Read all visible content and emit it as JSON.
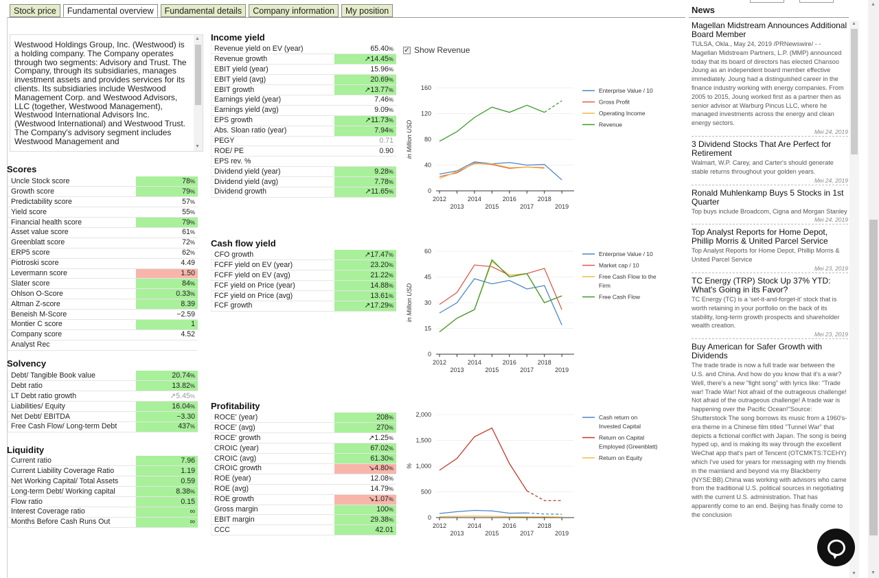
{
  "tabs": [
    {
      "label": "Stock price",
      "active": false
    },
    {
      "label": "Fundamental overview",
      "active": true
    },
    {
      "label": "Fundamental details",
      "active": false
    },
    {
      "label": "Company information",
      "active": false
    },
    {
      "label": "My position",
      "active": false
    }
  ],
  "description": "Westwood Holdings Group, Inc. (Westwood) is a holding company. The Company operates through two segments: Advisory and Trust. The Company, through its subsidiaries, manages investment assets and provides services for its clients. Its subsidiaries include Westwood Management Corp. and Westwood Advisors, LLC (together, Westwood Management), Westwood International Advisors Inc. (Westwood International) and Westwood Trust. The Company's advisory segment includes Westwood Management and",
  "scores": {
    "title": "Scores",
    "rows": [
      {
        "label": "Uncle Stock score",
        "value": "78",
        "unit": "%",
        "c": "g"
      },
      {
        "label": "Growth score",
        "value": "79",
        "unit": "%",
        "c": "g"
      },
      {
        "label": "Predictability score",
        "value": "57",
        "unit": "%",
        "c": "n"
      },
      {
        "label": "Yield score",
        "value": "55",
        "unit": "%",
        "c": "n"
      },
      {
        "label": "Financial health score",
        "value": "79",
        "unit": "%",
        "c": "g"
      },
      {
        "label": "Asset value score",
        "value": "61",
        "unit": "%",
        "c": "n"
      },
      {
        "label": "Greenblatt score",
        "value": "72",
        "unit": "%",
        "c": "n"
      },
      {
        "label": "ERP5 score",
        "value": "62",
        "unit": "%",
        "c": "n"
      },
      {
        "label": "Piotroski score",
        "value": "4.49",
        "unit": "",
        "c": "n"
      },
      {
        "label": "Levermann score",
        "value": "1.50",
        "unit": "",
        "c": "r"
      },
      {
        "label": "Slater score",
        "value": "84",
        "unit": "%",
        "c": "g"
      },
      {
        "label": "Ohlson O-Score",
        "value": "0.33",
        "unit": "%",
        "c": "g"
      },
      {
        "label": "Altman Z-score",
        "value": "8.39",
        "unit": "",
        "c": "g"
      },
      {
        "label": "Beneish M-Score",
        "value": "−2.59",
        "unit": "",
        "c": "n"
      },
      {
        "label": "Montier C score",
        "value": "1",
        "unit": "",
        "c": "g"
      },
      {
        "label": "Company score",
        "value": "4.52",
        "unit": "",
        "c": "n"
      },
      {
        "label": "Analyst Rec",
        "value": "",
        "unit": "",
        "c": "n"
      }
    ]
  },
  "solvency": {
    "title": "Solvency",
    "rows": [
      {
        "label": "Debt/ Tangible Book value",
        "value": "20.74",
        "unit": "%",
        "c": "g"
      },
      {
        "label": "Debt ratio",
        "value": "13.82",
        "unit": "%",
        "c": "g"
      },
      {
        "label": "LT Debt ratio growth",
        "value": "↗5.45",
        "unit": "%",
        "c": "n",
        "gray": true
      },
      {
        "label": "Liabilities/ Equity",
        "value": "16.04",
        "unit": "%",
        "c": "g"
      },
      {
        "label": "Net Debt/ EBITDA",
        "value": "−3.30",
        "unit": "",
        "c": "g"
      },
      {
        "label": "Free Cash Flow/ Long-term Debt",
        "value": "437",
        "unit": "%",
        "c": "g"
      }
    ]
  },
  "liquidity": {
    "title": "Liquidity",
    "rows": [
      {
        "label": "Current ratio",
        "value": "7.96",
        "unit": "",
        "c": "g"
      },
      {
        "label": "Current Liability Coverage Ratio",
        "value": "1.19",
        "unit": "",
        "c": "g"
      },
      {
        "label": "Net Working Capital/ Total Assets",
        "value": "0.59",
        "unit": "",
        "c": "g"
      },
      {
        "label": "Long-term Debt/ Working capital",
        "value": "8.38",
        "unit": "%",
        "c": "g"
      },
      {
        "label": "Flow ratio",
        "value": "0.15",
        "unit": "",
        "c": "g"
      },
      {
        "label": "Interest Coverage ratio",
        "value": "∞",
        "unit": "",
        "c": "g"
      },
      {
        "label": "Months Before Cash Runs Out",
        "value": "∞",
        "unit": "",
        "c": "g"
      }
    ]
  },
  "income": {
    "title": "Income yield",
    "rows": [
      {
        "label": "Revenue yield on EV (year)",
        "value": "65.40",
        "unit": "%",
        "c": "n"
      },
      {
        "label": "Revenue growth",
        "value": "↗14.45",
        "unit": "%",
        "c": "g"
      },
      {
        "label": "EBIT yield (year)",
        "value": "15.96",
        "unit": "%",
        "c": "n"
      },
      {
        "label": "EBIT yield (avg)",
        "value": "20.69",
        "unit": "%",
        "c": "g"
      },
      {
        "label": "EBIT growth",
        "value": "↗13.77",
        "unit": "%",
        "c": "g"
      },
      {
        "label": "Earnings yield (year)",
        "value": "7.46",
        "unit": "%",
        "c": "n"
      },
      {
        "label": "Earnings yield (avg)",
        "value": "9.09",
        "unit": "%",
        "c": "n"
      },
      {
        "label": "EPS growth",
        "value": "↗11.73",
        "unit": "%",
        "c": "g"
      },
      {
        "label": "Abs. Sloan ratio (year)",
        "value": "7.94",
        "unit": "%",
        "c": "g"
      },
      {
        "label": "PEGY",
        "value": "0.71",
        "unit": "",
        "c": "n",
        "gray": true
      },
      {
        "label": "ROE/ PE",
        "value": "0.90",
        "unit": "",
        "c": "n"
      },
      {
        "label": "EPS rev. %",
        "value": "",
        "unit": "",
        "c": "n"
      },
      {
        "label": "Dividend yield (year)",
        "value": "9.28",
        "unit": "%",
        "c": "g"
      },
      {
        "label": "Dividend yield (avg)",
        "value": "7.78",
        "unit": "%",
        "c": "g"
      },
      {
        "label": "Dividend growth",
        "value": "↗11.65",
        "unit": "%",
        "c": "g"
      }
    ]
  },
  "cashflow": {
    "title": "Cash flow yield",
    "rows": [
      {
        "label": "CFO growth",
        "value": "↗17.47",
        "unit": "%",
        "c": "g"
      },
      {
        "label": "FCFF yield on EV (year)",
        "value": "23.20",
        "unit": "%",
        "c": "g"
      },
      {
        "label": "FCFF yield on EV (avg)",
        "value": "21.22",
        "unit": "%",
        "c": "g"
      },
      {
        "label": "FCF yield on Price (year)",
        "value": "14.88",
        "unit": "%",
        "c": "g"
      },
      {
        "label": "FCF yield on Price (avg)",
        "value": "13.61",
        "unit": "%",
        "c": "g"
      },
      {
        "label": "FCF growth",
        "value": "↗17.29",
        "unit": "%",
        "c": "g"
      }
    ]
  },
  "profitability": {
    "title": "Profitability",
    "rows": [
      {
        "label": "ROCE' (year)",
        "value": "208",
        "unit": "%",
        "c": "g"
      },
      {
        "label": "ROCE' (avg)",
        "value": "270",
        "unit": "%",
        "c": "g"
      },
      {
        "label": "ROCE' growth",
        "value": "↗1.25",
        "unit": "%",
        "c": "n"
      },
      {
        "label": "CROIC (year)",
        "value": "67.02",
        "unit": "%",
        "c": "g"
      },
      {
        "label": "CROIC (avg)",
        "value": "61.30",
        "unit": "%",
        "c": "g"
      },
      {
        "label": "CROIC growth",
        "value": "↘4.80",
        "unit": "%",
        "c": "r"
      },
      {
        "label": "ROE (year)",
        "value": "12.08",
        "unit": "%",
        "c": "n"
      },
      {
        "label": "ROE (avg)",
        "value": "14.79",
        "unit": "%",
        "c": "n"
      },
      {
        "label": "ROE growth",
        "value": "↘1.07",
        "unit": "%",
        "c": "r"
      },
      {
        "label": "Gross margin",
        "value": "100",
        "unit": "%",
        "c": "g"
      },
      {
        "label": "EBIT margin",
        "value": "29.38",
        "unit": "%",
        "c": "g"
      },
      {
        "label": "CCC",
        "value": "42.01",
        "unit": "",
        "c": "g"
      }
    ]
  },
  "show_revenue": {
    "label": "Show Revenue",
    "checked": true
  },
  "news": {
    "title": "News",
    "items": [
      {
        "headline": "Magellan Midstream Announces Additional Board Member",
        "body": "TULSA, Okla., May 24, 2019 /PRNewswire/ - - Magellan Midstream Partners, L.P. (MMP) announced today that its board of directors has elected Chansoo Joung as an independent board member effective immediately. Joung had a distinguished career in the finance industry working with energy companies. From 2005 to 2015, Joung worked first as a partner then as senior advisor at Warburg Pincus LLC, where he managed investments across the energy and clean energy sectors.",
        "date": "Mei 24, 2019"
      },
      {
        "headline": "3 Dividend Stocks That Are Perfect for Retirement",
        "body": "Walmart, W.P. Carey, and Carter's should generate stable returns throughout your golden years.",
        "date": "Mei 24, 2019"
      },
      {
        "headline": "Ronald Muhlenkamp Buys 5 Stocks in 1st Quarter",
        "body": "Top buys include Broadcom, Cigna and Morgan Stanley",
        "date": "Mei 24, 2019"
      },
      {
        "headline": "Top Analyst Reports for Home Depot, Phillip Morris & United Parcel Service",
        "body": "Top Analyst Reports for Home Depot, Phillip Morris & United Parcel Service",
        "date": "Mei 23, 2019"
      },
      {
        "headline": "TC Energy (TRP) Stock Up 37% YTD: What's Going in its Favor?",
        "body": "TC Energy (TC) is a 'set-it-and-forget-it' stock that is worth retaining in your portfolio on the back of its stability, long-term growth prospects and shareholder wealth creation.",
        "date": "Mei 23, 2019"
      },
      {
        "headline": "Buy American for Safer Growth with Dividends",
        "body": "The trade tirade is now a full trade war between the U.S. and China. And how do you know that it's a war? Well, there's a new \"fight song\" with lyrics like: \"Trade war! Trade War! Not afraid of the outrageous challenge! Not afraid of the outrageous challenge! A trade war is happening over the Pacific Ocean!\"Source: Shutterstock The song borrows its music from a 1960's-era theme in a Chinese film titled \"Tunnel War\" that depicts a fictional conflict with Japan. The song is being hyped up, and is making its way through the excellent WeChat app that's part of Tencent (OTCMKTS:TCEHY) which I've used for years for messaging with my friends in the mainland and beyond via my Blackberry (NYSE:BB).China was working with advisors who came from the traditional U.S. political sources in negotiating with the current U.S. administration. That has apparently come to an end. Beijing has finally come to the conclusion",
        "date": ""
      }
    ]
  },
  "chart_data": [
    {
      "type": "line",
      "x": [
        2012,
        2013,
        2014,
        2015,
        2016,
        2017,
        2018,
        2019
      ],
      "xticks": [
        "2012",
        "2013",
        "2014",
        "2015",
        "2016",
        "2017",
        "2018",
        "2019"
      ],
      "yticks": [
        "0",
        "40",
        "80",
        "120",
        "160"
      ],
      "ylim": [
        0,
        160
      ],
      "ylabel": "in Million USD",
      "legend_position": "right",
      "series": [
        {
          "name": "Enterprise Value / 10",
          "color": "#4a86c8",
          "values": [
            26,
            31,
            45,
            42,
            44,
            40,
            41,
            17
          ]
        },
        {
          "name": "Gross Profit",
          "color": "#e0584a",
          "values": [
            22,
            28,
            43,
            41,
            35,
            37,
            36,
            null
          ]
        },
        {
          "name": "Operating Income",
          "color": "#f4b942",
          "values": [
            19,
            30,
            42,
            42,
            36,
            37,
            35,
            null
          ]
        },
        {
          "name": "Revenue",
          "color": "#3a9a2a",
          "values": [
            77,
            92,
            114,
            130,
            122,
            133,
            122,
            140
          ],
          "dashed_from": 6
        }
      ]
    },
    {
      "type": "line",
      "x": [
        2012,
        2013,
        2014,
        2015,
        2016,
        2017,
        2018,
        2019
      ],
      "xticks": [
        "2012",
        "2013",
        "2014",
        "2015",
        "2016",
        "2017",
        "2018",
        "2019"
      ],
      "yticks": [
        "0",
        "15",
        "30",
        "45",
        "60"
      ],
      "ylim": [
        0,
        60
      ],
      "ylabel": "in Million USD",
      "legend_position": "right",
      "series": [
        {
          "name": "Enterprise Value / 10",
          "color": "#4a86c8",
          "values": [
            24,
            30,
            44,
            41,
            43,
            38,
            40,
            17
          ]
        },
        {
          "name": "Market cap / 10",
          "color": "#e0584a",
          "values": [
            29,
            36,
            52,
            51,
            46,
            47,
            50,
            26
          ]
        },
        {
          "name": "Free Cash Flow to the Firm",
          "color": "#f4b942",
          "values": [
            13,
            21,
            26,
            54,
            46,
            47,
            30,
            34
          ]
        },
        {
          "name": "Free Cash Flow",
          "color": "#3a9a2a",
          "values": [
            13,
            21,
            26,
            55,
            45,
            47,
            30,
            34
          ]
        }
      ]
    },
    {
      "type": "line",
      "x": [
        2012,
        2013,
        2014,
        2015,
        2016,
        2017,
        2018,
        2019
      ],
      "xticks": [
        "2012",
        "2013",
        "2014",
        "2015",
        "2016",
        "2017",
        "2018",
        "2019"
      ],
      "yticks": [
        "0",
        "500",
        "1,000",
        "1,500",
        "2,000"
      ],
      "ylim": [
        0,
        2000
      ],
      "ylabel": "%",
      "legend_position": "right",
      "series": [
        {
          "name": "Cash return on Invested Capital",
          "color": "#4a86c8",
          "values": [
            80,
            115,
            140,
            130,
            85,
            90,
            70,
            65
          ],
          "dashed_from": 5
        },
        {
          "name": "Return on Capital Employed (Greenblatt)",
          "color": "#c0392b",
          "values": [
            920,
            1150,
            1570,
            1740,
            1050,
            520,
            330,
            330
          ],
          "dashed_from": 5
        },
        {
          "name": "Return on Equity",
          "color": "#f4b942",
          "values": [
            20,
            25,
            30,
            25,
            20,
            15,
            15,
            12
          ]
        }
      ]
    }
  ]
}
